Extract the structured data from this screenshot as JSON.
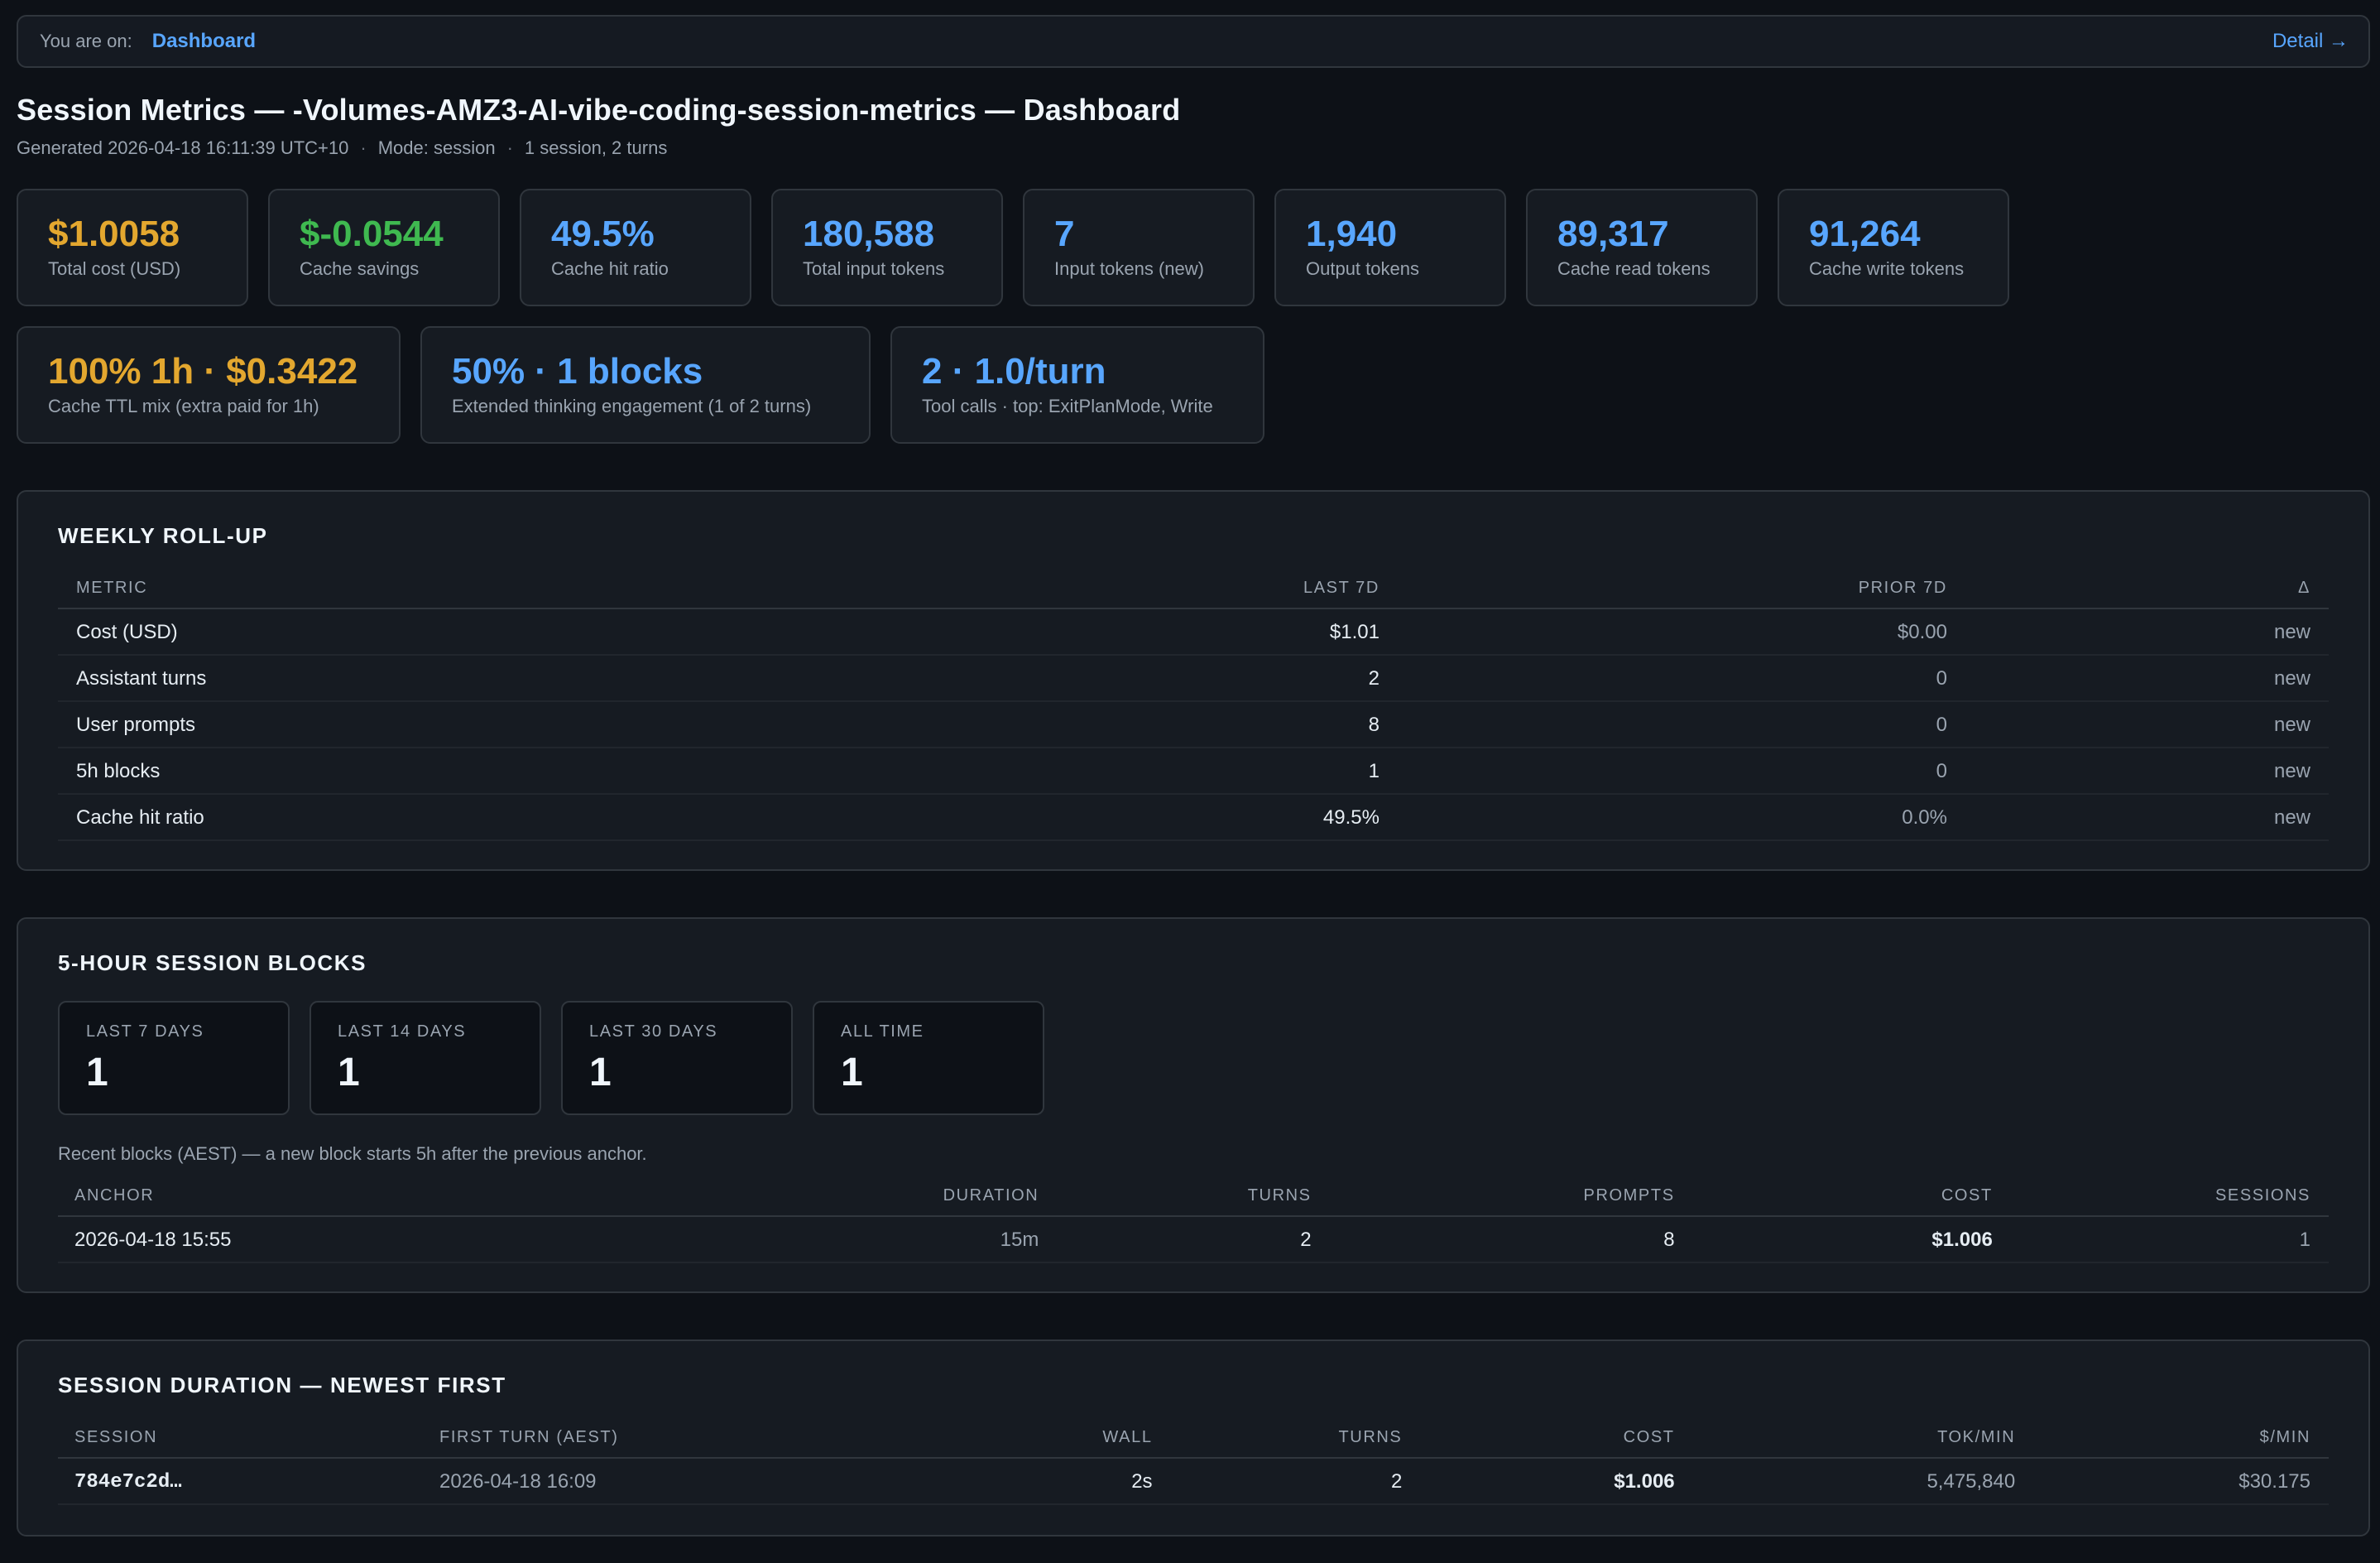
{
  "nav": {
    "prefix": "You are on:",
    "current": "Dashboard",
    "detail_link": "Detail →"
  },
  "header": {
    "title": "Session Metrics — -Volumes-AMZ3-AI-vibe-coding-session-metrics — Dashboard",
    "generated": "Generated 2026-04-18 16:11:39 UTC+10",
    "separator": "·",
    "mode": "Mode: session",
    "summary": "1 session, 2 turns"
  },
  "colors": {
    "orange": "#e3a72f",
    "green": "#3fb950",
    "blue": "#58a6ff"
  },
  "cards_row1": [
    {
      "value": "$1.0058",
      "label": "Total cost (USD)",
      "color": "orange"
    },
    {
      "value": "$-0.0544",
      "label": "Cache savings",
      "color": "green"
    },
    {
      "value": "49.5%",
      "label": "Cache hit ratio",
      "color": "blue"
    },
    {
      "value": "180,588",
      "label": "Total input tokens",
      "color": "blue"
    },
    {
      "value": "7",
      "label": "Input tokens (new)",
      "color": "blue"
    },
    {
      "value": "1,940",
      "label": "Output tokens",
      "color": "blue"
    },
    {
      "value": "89,317",
      "label": "Cache read tokens",
      "color": "blue"
    },
    {
      "value": "91,264",
      "label": "Cache write tokens",
      "color": "blue"
    }
  ],
  "cards_row2": [
    {
      "value": "100% 1h · $0.3422",
      "label": "Cache TTL mix (extra paid for 1h)",
      "color": "orange"
    },
    {
      "value": "50% · 1 blocks",
      "label": "Extended thinking engagement (1 of 2 turns)",
      "color": "blue"
    },
    {
      "value": "2 · 1.0/turn",
      "label": "Tool calls · top: ExitPlanMode, Write",
      "color": "blue"
    }
  ],
  "weekly": {
    "title": "WEEKLY ROLL-UP",
    "columns": [
      "METRIC",
      "LAST 7D",
      "PRIOR 7D",
      "Δ"
    ],
    "rows": [
      [
        "Cost (USD)",
        "$1.01",
        "$0.00",
        "new"
      ],
      [
        "Assistant turns",
        "2",
        "0",
        "new"
      ],
      [
        "User prompts",
        "8",
        "0",
        "new"
      ],
      [
        "5h blocks",
        "1",
        "0",
        "new"
      ],
      [
        "Cache hit ratio",
        "49.5%",
        "0.0%",
        "new"
      ]
    ]
  },
  "blocks": {
    "title": "5-HOUR SESSION BLOCKS",
    "tiles": [
      {
        "label": "LAST 7 DAYS",
        "value": "1"
      },
      {
        "label": "LAST 14 DAYS",
        "value": "1"
      },
      {
        "label": "LAST 30 DAYS",
        "value": "1"
      },
      {
        "label": "ALL TIME",
        "value": "1"
      }
    ],
    "note": "Recent blocks (AEST) — a new block starts 5h after the previous anchor.",
    "columns": [
      "ANCHOR",
      "DURATION",
      "TURNS",
      "PROMPTS",
      "COST",
      "SESSIONS"
    ],
    "rows": [
      [
        "2026-04-18 15:55",
        "15m",
        "2",
        "8",
        "$1.006",
        "1"
      ]
    ]
  },
  "durations": {
    "title": "SESSION DURATION — NEWEST FIRST",
    "columns": [
      "SESSION",
      "FIRST TURN (AEST)",
      "WALL",
      "TURNS",
      "COST",
      "TOK/MIN",
      "$/MIN"
    ],
    "rows": [
      [
        "784e7c2d…",
        "2026-04-18 16:09",
        "2s",
        "2",
        "$1.006",
        "5,475,840",
        "$30.175"
      ]
    ]
  }
}
